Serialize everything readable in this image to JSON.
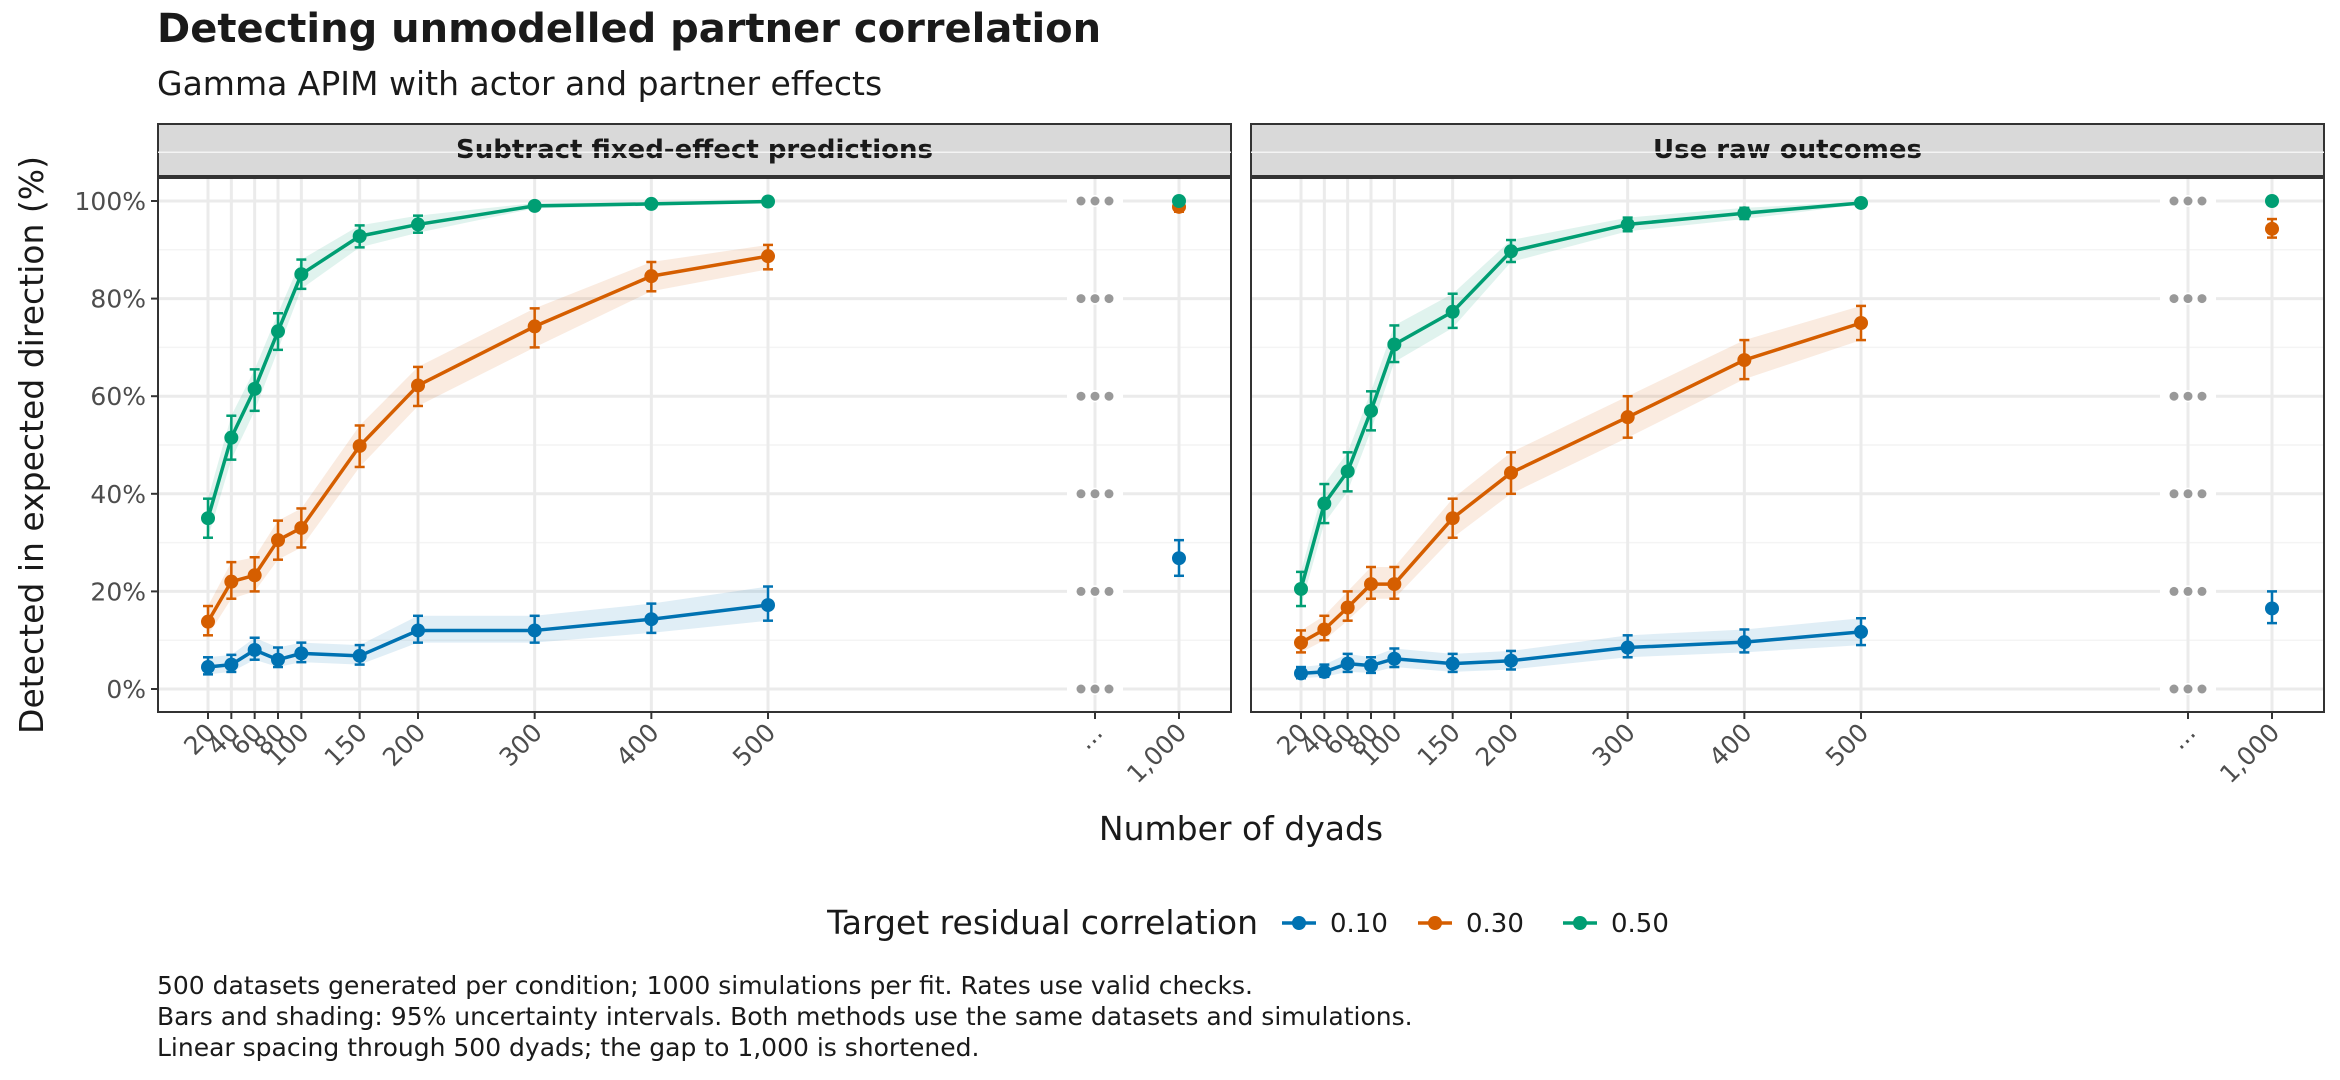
{
  "title": "Detecting unmodelled partner correlation",
  "subtitle": "Gamma APIM with actor and partner effects",
  "caption": [
    "500 datasets generated per condition; 1000 simulations per fit. Rates use valid checks.",
    "Bars and shading: 95% uncertainty intervals. Both methods use the same datasets and simulations.",
    "Linear spacing through 500 dyads; the gap to 1,000 is shortened."
  ],
  "colors": {
    "0.10": "#0072B2",
    "0.30": "#D55E00",
    "0.50": "#009E73",
    "ellipsis": "#999999"
  },
  "chart_data": {
    "type": "line",
    "xlabel": "Number of dyads",
    "ylabel": "Detected in expected direction (%)",
    "x_ticks": [
      "20",
      "40",
      "60",
      "80",
      "100",
      "150",
      "200",
      "300",
      "400",
      "500",
      "...",
      "1,000"
    ],
    "y_ticks": [
      "0%",
      "20%",
      "40%",
      "60%",
      "80%",
      "100%"
    ],
    "ylim": [
      0,
      100
    ],
    "legend": {
      "title": "Target residual correlation",
      "position": "bottom",
      "entries": [
        "0.10",
        "0.30",
        "0.50"
      ]
    },
    "x": [
      20,
      40,
      60,
      80,
      100,
      150,
      200,
      300,
      400,
      500
    ],
    "panels": [
      {
        "title": "Subtract fixed-effect predictions",
        "series": [
          {
            "name": "0.10",
            "y": [
              4.5,
              5.0,
              8.0,
              6.0,
              7.3,
              6.8,
              12.0,
              12.0,
              14.3,
              17.2
            ],
            "lower": [
              3.0,
              3.5,
              6.0,
              4.5,
              5.5,
              5.0,
              9.5,
              9.5,
              11.5,
              14.0
            ],
            "upper": [
              6.5,
              7.0,
              10.5,
              8.5,
              9.5,
              9.0,
              15.0,
              15.0,
              17.5,
              21.0
            ],
            "x1000": {
              "y": 26.8,
              "lower": 23.2,
              "upper": 30.5
            }
          },
          {
            "name": "0.30",
            "y": [
              13.8,
              22.0,
              23.3,
              30.5,
              33.0,
              49.8,
              62.2,
              74.3,
              84.6,
              88.7
            ],
            "lower": [
              11.0,
              18.5,
              20.0,
              26.5,
              29.0,
              45.5,
              58.0,
              70.0,
              81.5,
              86.0
            ],
            "upper": [
              17.0,
              26.0,
              27.0,
              34.5,
              37.0,
              54.0,
              66.0,
              78.0,
              87.5,
              91.0
            ],
            "x1000": {
              "y": 98.8,
              "lower": 97.8,
              "upper": 99.8
            }
          },
          {
            "name": "0.50",
            "y": [
              35.0,
              51.5,
              61.5,
              73.3,
              85.0,
              92.8,
              95.2,
              99.0,
              99.4,
              99.9
            ],
            "lower": [
              31.0,
              47.0,
              57.0,
              69.5,
              82.0,
              90.5,
              93.5,
              98.5,
              99.0,
              99.7
            ],
            "upper": [
              39.0,
              56.0,
              65.5,
              77.0,
              88.0,
              95.0,
              97.0,
              99.6,
              99.8,
              100.0
            ],
            "x1000": {
              "y": 100.0,
              "lower": 99.7,
              "upper": 100.0
            }
          }
        ]
      },
      {
        "title": "Use raw outcomes",
        "series": [
          {
            "name": "0.10",
            "y": [
              3.2,
              3.5,
              5.2,
              4.8,
              6.2,
              5.2,
              5.8,
              8.5,
              9.6,
              11.7
            ],
            "lower": [
              2.2,
              2.5,
              3.5,
              3.3,
              4.5,
              3.5,
              4.0,
              6.5,
              7.5,
              9.0
            ],
            "upper": [
              4.5,
              5.0,
              7.2,
              6.5,
              8.3,
              7.2,
              7.8,
              11.0,
              12.2,
              14.5
            ],
            "x1000": {
              "y": 16.5,
              "lower": 13.5,
              "upper": 20.0
            }
          },
          {
            "name": "0.30",
            "y": [
              9.5,
              12.2,
              16.7,
              21.5,
              21.5,
              35.0,
              44.3,
              55.7,
              67.4,
              75.0
            ],
            "lower": [
              7.5,
              10.0,
              14.0,
              18.5,
              18.5,
              31.0,
              40.0,
              51.5,
              63.5,
              71.5
            ],
            "upper": [
              12.0,
              15.0,
              20.0,
              25.0,
              25.0,
              39.0,
              48.5,
              60.0,
              71.5,
              78.5
            ],
            "x1000": {
              "y": 94.3,
              "lower": 92.5,
              "upper": 96.3
            }
          },
          {
            "name": "0.50",
            "y": [
              20.5,
              38.0,
              44.6,
              57.0,
              70.6,
              77.3,
              89.7,
              95.2,
              97.5,
              99.6
            ],
            "lower": [
              17.0,
              34.0,
              40.5,
              53.0,
              67.0,
              74.0,
              87.5,
              93.8,
              96.3,
              99.3
            ],
            "upper": [
              24.0,
              42.0,
              48.5,
              61.0,
              74.5,
              81.0,
              92.0,
              96.6,
              98.6,
              99.9
            ],
            "x1000": {
              "y": 100.0,
              "lower": 99.7,
              "upper": 100.0
            }
          }
        ]
      }
    ]
  }
}
